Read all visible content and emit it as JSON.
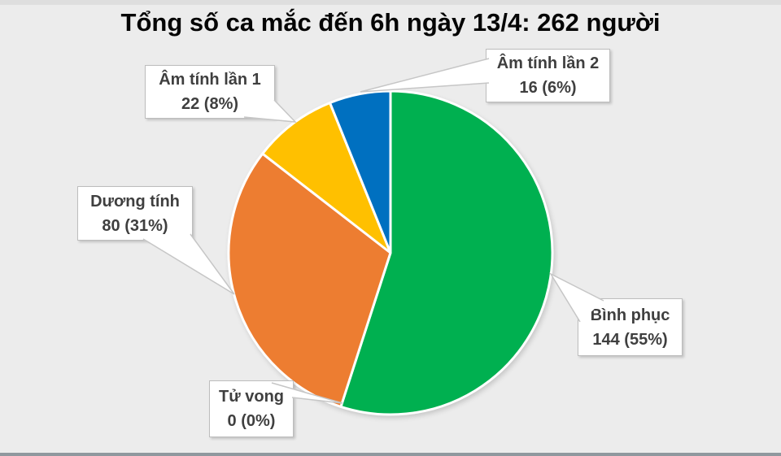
{
  "chart_data": {
    "type": "pie",
    "title": "Tổng số ca mắc đến 6h ngày 13/4: 262 người",
    "total": 262,
    "start_angle_deg": 0,
    "direction": "clockwise",
    "legend_position": "callout-labels",
    "background_color": "#ECECEC",
    "separator_color": "#FFFFFF",
    "slices": [
      {
        "id": "binh-phuc",
        "label": "Bình phục",
        "value": 144,
        "pct": 55,
        "value_text": "144 (55%)",
        "color": "#00B050"
      },
      {
        "id": "tu-vong",
        "label": "Tử vong",
        "value": 0,
        "pct": 0,
        "value_text": "0 (0%)",
        "color": "#A5A5A5"
      },
      {
        "id": "duong-tinh",
        "label": "Dương tính",
        "value": 80,
        "pct": 31,
        "value_text": "80 (31%)",
        "color": "#ED7D31"
      },
      {
        "id": "am-tinh-lan-1",
        "label": "Âm tính lần 1",
        "value": 22,
        "pct": 8,
        "value_text": "22 (8%)",
        "color": "#FFC000"
      },
      {
        "id": "am-tinh-lan-2",
        "label": "Âm tính lần 2",
        "value": 16,
        "pct": 6,
        "value_text": "16 (6%)",
        "color": "#0070C0"
      }
    ]
  }
}
